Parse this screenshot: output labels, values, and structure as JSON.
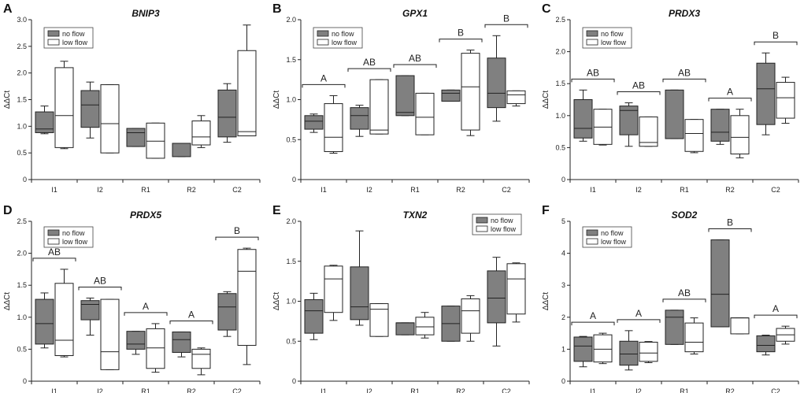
{
  "figure": {
    "legend": {
      "gray": "no flow",
      "white": "low flow"
    },
    "colors": {
      "no_flow": "#808080",
      "low_flow": "#ffffff",
      "line": "#222222"
    }
  },
  "chart_data": [
    {
      "type": "box",
      "panel": "A",
      "title": "BNIP3",
      "ylabel": "ΔΔCt",
      "ylim": [
        0,
        3.0
      ],
      "yticks": [
        "0",
        "0.5",
        "1.0",
        "1.5",
        "2.0",
        "2.5",
        "3.0"
      ],
      "categories": [
        "I1",
        "I2",
        "R1",
        "R2",
        "C2"
      ],
      "legend_position": "top-left",
      "series": [
        {
          "name": "no flow",
          "boxes": [
            {
              "min": 0.86,
              "q1": 0.88,
              "median": 0.95,
              "q3": 1.27,
              "max": 1.38
            },
            {
              "min": 0.78,
              "q1": 0.98,
              "median": 1.4,
              "q3": 1.67,
              "max": 1.83
            },
            {
              "min": 0.62,
              "q1": 0.62,
              "median": 0.88,
              "q3": 0.96,
              "max": 0.96
            },
            {
              "min": 0.43,
              "q1": 0.43,
              "median": 0.68,
              "q3": 0.68,
              "max": 0.68
            },
            {
              "min": 0.7,
              "q1": 0.8,
              "median": 1.17,
              "q3": 1.68,
              "max": 1.8
            }
          ]
        },
        {
          "name": "low flow",
          "boxes": [
            {
              "min": 0.58,
              "q1": 0.6,
              "median": 1.2,
              "q3": 2.1,
              "max": 2.22
            },
            {
              "min": 0.5,
              "q1": 0.5,
              "median": 1.05,
              "q3": 1.78,
              "max": 1.78
            },
            {
              "min": 0.4,
              "q1": 0.4,
              "median": 0.72,
              "q3": 1.06,
              "max": 1.06
            },
            {
              "min": 0.6,
              "q1": 0.65,
              "median": 0.8,
              "q3": 1.1,
              "max": 1.2
            },
            {
              "min": 0.82,
              "q1": 0.82,
              "median": 0.9,
              "q3": 2.42,
              "max": 2.9
            }
          ]
        }
      ],
      "annotations": []
    },
    {
      "type": "box",
      "panel": "B",
      "title": "GPX1",
      "ylabel": "ΔΔCt",
      "ylim": [
        0,
        2.0
      ],
      "yticks": [
        "0",
        "0.5",
        "1.0",
        "1.5",
        "2.0"
      ],
      "categories": [
        "I1",
        "I2",
        "R1",
        "R2",
        "C2"
      ],
      "legend_position": "top-left",
      "series": [
        {
          "name": "no flow",
          "boxes": [
            {
              "min": 0.59,
              "q1": 0.63,
              "median": 0.73,
              "q3": 0.8,
              "max": 0.82
            },
            {
              "min": 0.54,
              "q1": 0.63,
              "median": 0.8,
              "q3": 0.9,
              "max": 0.93
            },
            {
              "min": 0.8,
              "q1": 0.8,
              "median": 0.84,
              "q3": 1.3,
              "max": 1.3
            },
            {
              "min": 0.98,
              "q1": 0.98,
              "median": 1.08,
              "q3": 1.12,
              "max": 1.12
            },
            {
              "min": 0.73,
              "q1": 0.9,
              "median": 1.08,
              "q3": 1.52,
              "max": 1.8
            }
          ]
        },
        {
          "name": "low flow",
          "boxes": [
            {
              "min": 0.33,
              "q1": 0.35,
              "median": 0.53,
              "q3": 0.95,
              "max": 1.05
            },
            {
              "min": 0.57,
              "q1": 0.57,
              "median": 0.62,
              "q3": 1.25,
              "max": 1.25
            },
            {
              "min": 0.56,
              "q1": 0.56,
              "median": 0.78,
              "q3": 1.08,
              "max": 1.08
            },
            {
              "min": 0.55,
              "q1": 0.62,
              "median": 1.16,
              "q3": 1.58,
              "max": 1.62
            },
            {
              "min": 0.92,
              "q1": 0.95,
              "median": 1.06,
              "q3": 1.11,
              "max": 1.11
            }
          ]
        }
      ],
      "annotations": [
        "A",
        "AB",
        "AB",
        "B",
        "B"
      ]
    },
    {
      "type": "box",
      "panel": "C",
      "title": "PRDX3",
      "ylabel": "ΔΔCt",
      "ylim": [
        0,
        2.5
      ],
      "yticks": [
        "0",
        "0.5",
        "1.0",
        "1.5",
        "2.0",
        "2.5"
      ],
      "categories": [
        "I1",
        "I2",
        "R1",
        "R2",
        "C2"
      ],
      "legend_position": "top-left",
      "series": [
        {
          "name": "no flow",
          "boxes": [
            {
              "min": 0.6,
              "q1": 0.65,
              "median": 0.8,
              "q3": 1.25,
              "max": 1.4
            },
            {
              "min": 0.52,
              "q1": 0.7,
              "median": 1.08,
              "q3": 1.15,
              "max": 1.2
            },
            {
              "min": 0.64,
              "q1": 0.64,
              "median": 0.64,
              "q3": 1.4,
              "max": 1.4
            },
            {
              "min": 0.55,
              "q1": 0.6,
              "median": 0.74,
              "q3": 1.1,
              "max": 1.1
            },
            {
              "min": 0.7,
              "q1": 0.86,
              "median": 1.42,
              "q3": 1.82,
              "max": 1.98
            }
          ]
        },
        {
          "name": "low flow",
          "boxes": [
            {
              "min": 0.54,
              "q1": 0.55,
              "median": 0.82,
              "q3": 1.1,
              "max": 1.1
            },
            {
              "min": 0.52,
              "q1": 0.52,
              "median": 0.58,
              "q3": 0.98,
              "max": 0.98
            },
            {
              "min": 0.42,
              "q1": 0.44,
              "median": 0.72,
              "q3": 0.94,
              "max": 0.94
            },
            {
              "min": 0.34,
              "q1": 0.4,
              "median": 0.66,
              "q3": 1.0,
              "max": 1.1
            },
            {
              "min": 0.88,
              "q1": 0.96,
              "median": 1.28,
              "q3": 1.52,
              "max": 1.6
            }
          ]
        }
      ],
      "annotations": [
        "AB",
        "AB",
        "AB",
        "A",
        "B"
      ]
    },
    {
      "type": "box",
      "panel": "D",
      "title": "PRDX5",
      "ylabel": "ΔΔCt",
      "ylim": [
        0,
        2.5
      ],
      "yticks": [
        "0",
        "0.5",
        "1.0",
        "1.5",
        "2.0",
        "2.5"
      ],
      "categories": [
        "I1",
        "I2",
        "R1",
        "R2",
        "C2"
      ],
      "legend_position": "top-left",
      "series": [
        {
          "name": "no flow",
          "boxes": [
            {
              "min": 0.52,
              "q1": 0.58,
              "median": 0.9,
              "q3": 1.28,
              "max": 1.38
            },
            {
              "min": 0.72,
              "q1": 0.96,
              "median": 1.2,
              "q3": 1.26,
              "max": 1.3
            },
            {
              "min": 0.42,
              "q1": 0.5,
              "median": 0.58,
              "q3": 0.78,
              "max": 0.78
            },
            {
              "min": 0.38,
              "q1": 0.45,
              "median": 0.65,
              "q3": 0.77,
              "max": 0.77
            },
            {
              "min": 0.7,
              "q1": 0.8,
              "median": 1.16,
              "q3": 1.37,
              "max": 1.4
            }
          ]
        },
        {
          "name": "low flow",
          "boxes": [
            {
              "min": 0.38,
              "q1": 0.4,
              "median": 0.64,
              "q3": 1.53,
              "max": 1.75
            },
            {
              "min": 0.18,
              "q1": 0.18,
              "median": 0.46,
              "q3": 1.28,
              "max": 1.28
            },
            {
              "min": 0.14,
              "q1": 0.2,
              "median": 0.52,
              "q3": 0.82,
              "max": 0.9
            },
            {
              "min": 0.1,
              "q1": 0.2,
              "median": 0.42,
              "q3": 0.5,
              "max": 0.52
            },
            {
              "min": 0.26,
              "q1": 0.56,
              "median": 1.72,
              "q3": 2.06,
              "max": 2.08
            }
          ]
        }
      ],
      "annotations": [
        "AB",
        "AB",
        "A",
        "A",
        "B"
      ]
    },
    {
      "type": "box",
      "panel": "E",
      "title": "TXN2",
      "ylabel": "ΔΔCt",
      "ylim": [
        0,
        2.0
      ],
      "yticks": [
        "0",
        "0.5",
        "1.0",
        "1.5",
        "2.0"
      ],
      "categories": [
        "I1",
        "I2",
        "R1",
        "R2",
        "C2"
      ],
      "legend_position": "top-right",
      "series": [
        {
          "name": "no flow",
          "boxes": [
            {
              "min": 0.52,
              "q1": 0.6,
              "median": 0.88,
              "q3": 1.02,
              "max": 1.1
            },
            {
              "min": 0.7,
              "q1": 0.77,
              "median": 0.93,
              "q3": 1.43,
              "max": 1.88
            },
            {
              "min": 0.58,
              "q1": 0.58,
              "median": 0.73,
              "q3": 0.73,
              "max": 0.73
            },
            {
              "min": 0.5,
              "q1": 0.5,
              "median": 0.72,
              "q3": 0.94,
              "max": 0.94
            },
            {
              "min": 0.44,
              "q1": 0.73,
              "median": 1.04,
              "q3": 1.38,
              "max": 1.55
            }
          ]
        },
        {
          "name": "low flow",
          "boxes": [
            {
              "min": 0.76,
              "q1": 0.86,
              "median": 1.28,
              "q3": 1.44,
              "max": 1.45
            },
            {
              "min": 0.56,
              "q1": 0.56,
              "median": 0.9,
              "q3": 0.97,
              "max": 0.97
            },
            {
              "min": 0.54,
              "q1": 0.58,
              "median": 0.68,
              "q3": 0.8,
              "max": 0.86
            },
            {
              "min": 0.5,
              "q1": 0.6,
              "median": 0.88,
              "q3": 1.03,
              "max": 1.07
            },
            {
              "min": 0.74,
              "q1": 0.84,
              "median": 1.28,
              "q3": 1.47,
              "max": 1.48
            }
          ]
        }
      ],
      "annotations": []
    },
    {
      "type": "box",
      "panel": "F",
      "title": "SOD2",
      "ylabel": "ΔΔCt",
      "ylim": [
        0,
        5
      ],
      "yticks": [
        "0",
        "1",
        "2",
        "3",
        "4",
        "5"
      ],
      "categories": [
        "I1",
        "I2",
        "R1",
        "R2",
        "C2"
      ],
      "legend_position": "top-left",
      "series": [
        {
          "name": "no flow",
          "boxes": [
            {
              "min": 0.45,
              "q1": 0.62,
              "median": 1.1,
              "q3": 1.38,
              "max": 1.4
            },
            {
              "min": 0.35,
              "q1": 0.5,
              "median": 0.85,
              "q3": 1.25,
              "max": 1.58
            },
            {
              "min": 1.15,
              "q1": 1.15,
              "median": 2.0,
              "q3": 2.22,
              "max": 2.22
            },
            {
              "min": 1.7,
              "q1": 1.7,
              "median": 2.72,
              "q3": 4.42,
              "max": 4.42
            },
            {
              "min": 0.82,
              "q1": 0.92,
              "median": 1.12,
              "q3": 1.42,
              "max": 1.44
            }
          ]
        },
        {
          "name": "low flow",
          "boxes": [
            {
              "min": 0.55,
              "q1": 0.6,
              "median": 1.0,
              "q3": 1.45,
              "max": 1.5
            },
            {
              "min": 0.58,
              "q1": 0.62,
              "median": 0.88,
              "q3": 1.22,
              "max": 1.24
            },
            {
              "min": 0.85,
              "q1": 0.92,
              "median": 1.22,
              "q3": 1.82,
              "max": 1.98
            },
            {
              "min": 1.48,
              "q1": 1.48,
              "median": 1.98,
              "q3": 1.98,
              "max": 1.98
            },
            {
              "min": 1.16,
              "q1": 1.25,
              "median": 1.45,
              "q3": 1.65,
              "max": 1.72
            }
          ]
        }
      ],
      "annotations": [
        "A",
        "A",
        "AB",
        "B",
        "A"
      ]
    }
  ]
}
